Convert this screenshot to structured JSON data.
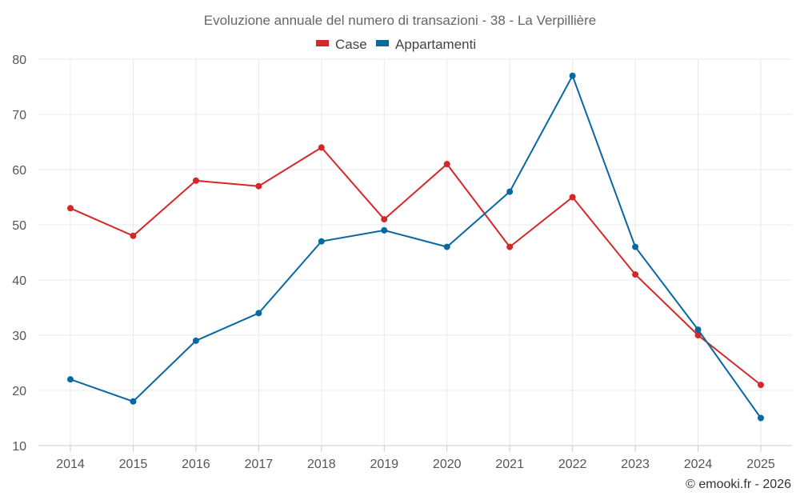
{
  "chart_data": {
    "type": "line",
    "title": "Evoluzione annuale del numero di transazioni - 38 - La Verpillière",
    "categories": [
      "2014",
      "2015",
      "2016",
      "2017",
      "2018",
      "2019",
      "2020",
      "2021",
      "2022",
      "2023",
      "2024",
      "2025"
    ],
    "series": [
      {
        "name": "Case",
        "color": "#d62728",
        "values": [
          53,
          48,
          58,
          57,
          64,
          51,
          61,
          46,
          55,
          41,
          30,
          21
        ]
      },
      {
        "name": "Appartamenti",
        "color": "#0868a2",
        "values": [
          22,
          18,
          29,
          34,
          47,
          49,
          46,
          56,
          77,
          46,
          31,
          15
        ]
      }
    ],
    "y_ticks": [
      "10",
      "20",
      "30",
      "40",
      "50",
      "60",
      "70",
      "80"
    ],
    "ylim": [
      10,
      80
    ],
    "grid": true,
    "legend": "top-center"
  },
  "credit": "© emooki.fr - 2026"
}
